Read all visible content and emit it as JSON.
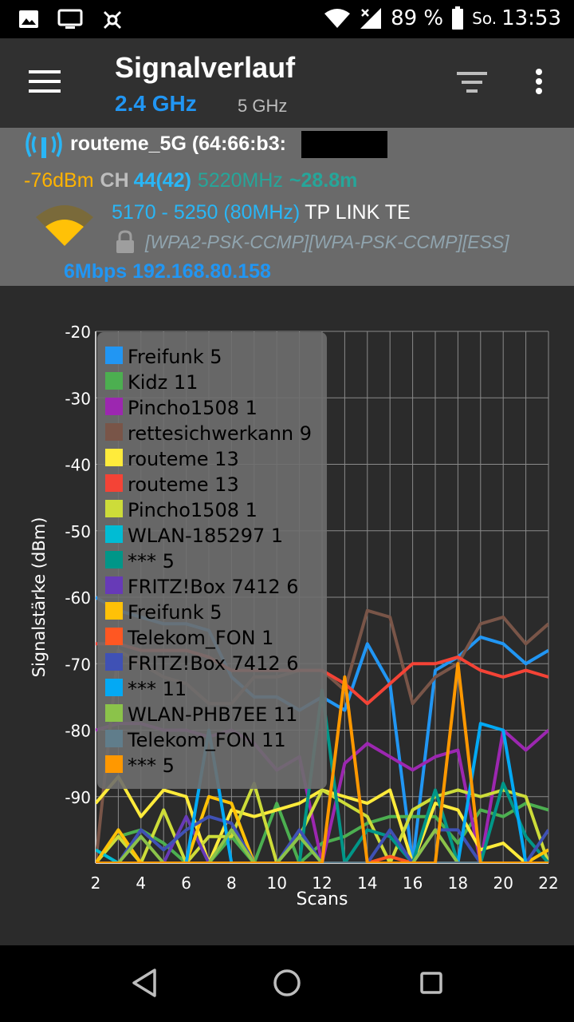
{
  "status_bar": {
    "icons": [
      "image-icon",
      "cast-icon",
      "app-icon",
      "wifi-icon",
      "cell-signal-icon",
      "battery-icon"
    ],
    "battery": "89 %",
    "day": "So.",
    "time": "13:53"
  },
  "app_bar": {
    "title": "Signalverlauf",
    "tabs": [
      {
        "label": "2.4 GHz",
        "selected": true,
        "color": "#2196f3"
      },
      {
        "label": "5 GHz",
        "selected": false
      }
    ]
  },
  "access_point": {
    "name": "routeme_5G (64:66:b3:",
    "name_close": ")",
    "level": "-76dBm",
    "ch_label": "CH",
    "channel": "44(42)",
    "frequency": "5220MHz",
    "distance": "~28.8m",
    "range": "5170 - 5250 (80MHz)",
    "vendor": "TP LINK TE",
    "security": "[WPA2-PSK-CCMP][WPA-PSK-CCMP][ESS]",
    "speed_ip": "6Mbps 192.168.80.158"
  },
  "chart_data": {
    "type": "line",
    "xlabel": "Scans",
    "ylabel": "Signalstärke (dBm)",
    "ylim": [
      -100,
      -20
    ],
    "xlim": [
      2,
      22
    ],
    "x_ticks": [
      2,
      4,
      6,
      8,
      10,
      12,
      14,
      16,
      18,
      20,
      22
    ],
    "y_ticks": [
      -20,
      -30,
      -40,
      -50,
      -60,
      -70,
      -80,
      -90
    ],
    "legend_position": "top-left",
    "x": [
      2,
      3,
      4,
      5,
      6,
      7,
      8,
      9,
      10,
      11,
      12,
      13,
      14,
      15,
      16,
      17,
      18,
      19,
      20,
      21,
      22
    ],
    "series": [
      {
        "name": "Freifunk 5",
        "color": "#2196f3",
        "values": [
          -60,
          -62,
          -63,
          -64,
          -64,
          -65,
          -72,
          -75,
          -75,
          -77,
          -75,
          -77,
          -67,
          -73,
          -100,
          -71,
          -69,
          -66,
          -67,
          -70,
          -68
        ]
      },
      {
        "name": "Kidz 11",
        "color": "#4caf50",
        "values": [
          -100,
          -96,
          -95,
          -97,
          -100,
          -100,
          -96,
          -100,
          -91,
          -100,
          -97,
          -96,
          -94,
          -93,
          -93,
          -93,
          -97,
          -92,
          -93,
          -91,
          -92
        ]
      },
      {
        "name": "Pincho1508 1",
        "color": "#9c27b0",
        "values": [
          -80,
          -79,
          -79,
          -80,
          -80,
          -81,
          -80,
          -82,
          -86,
          -84,
          -100,
          -85,
          -82,
          -84,
          -86,
          -84,
          -83,
          -100,
          -80,
          -83,
          -80
        ]
      },
      {
        "name": "rettesichwerkann 9",
        "color": "#795548",
        "values": [
          -100,
          -68,
          -70,
          -72,
          -73,
          -76,
          -76,
          -72,
          -72,
          -71,
          -71,
          -74,
          -62,
          -63,
          -76,
          -72,
          -70,
          -64,
          -63,
          -67,
          -64
        ]
      },
      {
        "name": "routeme 13",
        "color": "#ffeb3b",
        "values": [
          -91,
          -87,
          -93,
          -89,
          -90,
          -100,
          -92,
          -93,
          -92,
          -91,
          -89,
          -90,
          -91,
          -89,
          -100,
          -91,
          -92,
          -98,
          -97,
          -100,
          -100
        ]
      },
      {
        "name": "routeme 13",
        "color": "#f44336",
        "values": [
          -67,
          -67,
          -68,
          -68,
          -68,
          -69,
          -71,
          -71,
          -71,
          -71,
          -71,
          -73,
          -76,
          -73,
          -70,
          -70,
          -69,
          -71,
          -72,
          -71,
          -72
        ]
      },
      {
        "name": "Pincho1508 1",
        "color": "#cddc39",
        "values": [
          -100,
          -96,
          -100,
          -92,
          -100,
          -96,
          -96,
          -88,
          -100,
          -96,
          -89,
          -91,
          -93,
          -100,
          -92,
          -90,
          -89,
          -90,
          -89,
          -90,
          -100
        ]
      },
      {
        "name": "WLAN-185297 1",
        "color": "#00bcd4",
        "values": [
          -98,
          -100,
          -100,
          -100,
          -100,
          -100,
          -100,
          -100,
          -100,
          -100,
          -100,
          -100,
          -100,
          -100,
          -100,
          -100,
          -100,
          -100,
          -100,
          -100,
          -100
        ]
      },
      {
        "name": "*** 5",
        "color": "#009688",
        "values": [
          -100,
          -100,
          -100,
          -100,
          -100,
          -100,
          -100,
          -100,
          -100,
          -100,
          -74,
          -100,
          -95,
          -96,
          -100,
          -89,
          -100,
          -100,
          -88,
          -96,
          -100
        ]
      },
      {
        "name": "FRITZ!Box 7412 6",
        "color": "#673ab7",
        "values": [
          -100,
          -100,
          -100,
          -100,
          -93,
          -100,
          -100,
          -100,
          -100,
          -100,
          -100,
          -100,
          -100,
          -100,
          -100,
          -100,
          -100,
          -100,
          -100,
          -100,
          -100
        ]
      },
      {
        "name": "Freifunk 5",
        "color": "#ffc107",
        "values": [
          -100,
          -95,
          -100,
          -100,
          -100,
          -90,
          -91,
          -100,
          -100,
          -100,
          -100,
          -100,
          -100,
          -100,
          -100,
          -100,
          -100,
          -100,
          -100,
          -100,
          -98
        ]
      },
      {
        "name": "Telekom_FON 1",
        "color": "#ff5722",
        "values": [
          -100,
          -100,
          -100,
          -100,
          -100,
          -100,
          -100,
          -100,
          -100,
          -100,
          -100,
          -100,
          -100,
          -99,
          -100,
          -100,
          -100,
          -100,
          -100,
          -100,
          -100
        ]
      },
      {
        "name": "FRITZ!Box 7412 6",
        "color": "#3f51b5",
        "values": [
          -100,
          -100,
          -95,
          -98,
          -95,
          -93,
          -94,
          -100,
          -100,
          -95,
          -100,
          -100,
          -100,
          -95,
          -100,
          -95,
          -95,
          -100,
          -100,
          -100,
          -95
        ]
      },
      {
        "name": "*** 11",
        "color": "#03a9f4",
        "values": [
          -100,
          -100,
          -100,
          -100,
          -100,
          -80,
          -100,
          -100,
          -100,
          -100,
          -100,
          -100,
          -100,
          -100,
          -100,
          -100,
          -100,
          -79,
          -80,
          -100,
          -100
        ]
      },
      {
        "name": "WLAN-PHB7EE 11",
        "color": "#8bc34a",
        "values": [
          -100,
          -100,
          -96,
          -100,
          -100,
          -100,
          -95,
          -100,
          -100,
          -96,
          -100,
          -100,
          -100,
          -100,
          -100,
          -95,
          -100,
          -100,
          -100,
          -100,
          -100
        ]
      },
      {
        "name": "Telekom_FON 11",
        "color": "#607d8b",
        "values": [
          -100,
          -100,
          -100,
          -100,
          -100,
          -100,
          -100,
          -100,
          -100,
          -100,
          -100,
          -100,
          -100,
          -100,
          -100,
          -100,
          -100,
          -100,
          -100,
          -100,
          -100
        ]
      },
      {
        "name": "*** 5",
        "color": "#ff9800",
        "values": [
          -100,
          -100,
          -100,
          -100,
          -100,
          -100,
          -100,
          -100,
          -100,
          -100,
          -100,
          -72,
          -100,
          -100,
          -100,
          -100,
          -70,
          -100,
          -100,
          -100,
          -100
        ]
      }
    ]
  },
  "nav_bar": {
    "buttons": [
      "back-icon",
      "home-icon",
      "recents-icon"
    ]
  }
}
